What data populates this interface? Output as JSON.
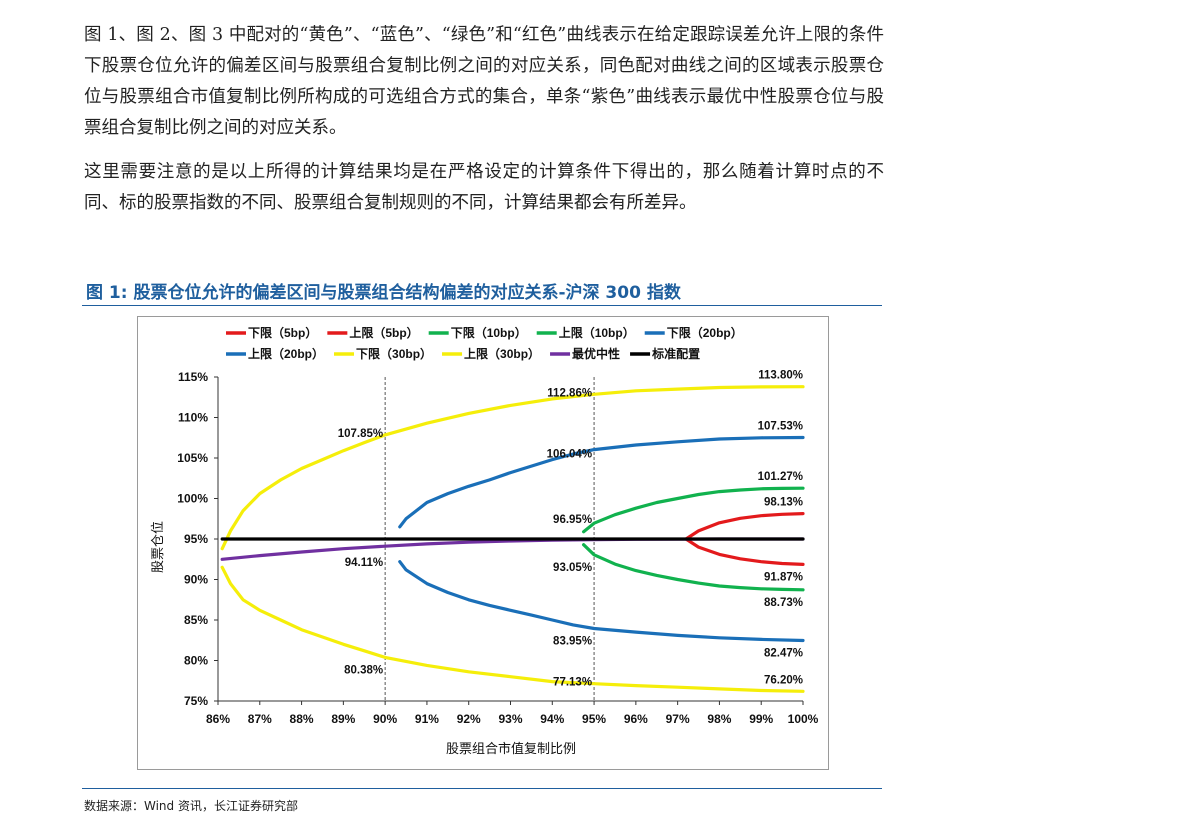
{
  "text": {
    "para1": "图 1、图 2、图 3 中配对的“黄色”、“蓝色”、“绿色”和“红色”曲线表示在给定跟踪误差允许上限的条件下股票仓位允许的偏差区间与股票组合复制比例之间的对应关系，同色配对曲线之间的区域表示股票仓位与股票组合市值复制比例所构成的可选组合方式的集合，单条“紫色”曲线表示最优中性股票仓位与股票组合复制比例之间的对应关系。",
    "para2": "这里需要注意的是以上所得的计算结果均是在严格设定的计算条件下得出的，那么随着计算时点的不同、标的股票指数的不同、股票组合复制规则的不同，计算结果都会有所差异。",
    "figure_title": "图 1:  股票仓位允许的偏差区间与股票组合结构偏差的对应关系-沪深 300 指数",
    "source": "数据来源：Wind 资讯，长江证券研究部"
  },
  "colors": {
    "red": "#e31a1c",
    "green": "#11b24e",
    "blue": "#1a6fb8",
    "yellow": "#f5ee0a",
    "purple": "#7030a0",
    "black": "#000000",
    "title_blue": "#1f5f9e"
  },
  "chart_data": {
    "type": "line",
    "title": "",
    "xlabel": "股票组合市值复制比例",
    "ylabel": "股票仓位",
    "xlim": [
      86,
      100
    ],
    "ylim": [
      75,
      115
    ],
    "x_ticks": [
      "86%",
      "87%",
      "88%",
      "89%",
      "90%",
      "91%",
      "92%",
      "93%",
      "94%",
      "95%",
      "96%",
      "97%",
      "98%",
      "99%",
      "100%"
    ],
    "y_ticks": [
      "75%",
      "80%",
      "85%",
      "90%",
      "95%",
      "100%",
      "105%",
      "110%",
      "115%"
    ],
    "vertical_reference_lines": [
      90,
      95
    ],
    "legend_position": "top",
    "series": [
      {
        "name": "下限（5bp）",
        "color": "red",
        "x": [
          97.2,
          97.5,
          98,
          98.5,
          99,
          99.5,
          100
        ],
        "y": [
          95.0,
          94.0,
          93.1,
          92.55,
          92.2,
          91.98,
          91.87
        ]
      },
      {
        "name": "上限（5bp）",
        "color": "red",
        "x": [
          97.2,
          97.5,
          98,
          98.5,
          99,
          99.5,
          100
        ],
        "y": [
          95.0,
          96.0,
          97.0,
          97.55,
          97.88,
          98.05,
          98.13
        ]
      },
      {
        "name": "下限（10bp）",
        "color": "green",
        "x": [
          94.75,
          95,
          95.5,
          96,
          96.5,
          97,
          97.5,
          98,
          98.5,
          99,
          99.5,
          100
        ],
        "y": [
          94.3,
          93.05,
          91.9,
          91.1,
          90.5,
          90.0,
          89.55,
          89.2,
          89.0,
          88.85,
          88.78,
          88.73
        ]
      },
      {
        "name": "上限（10bp）",
        "color": "green",
        "x": [
          94.75,
          95,
          95.5,
          96,
          96.5,
          97,
          97.5,
          98,
          98.5,
          99,
          99.5,
          100
        ],
        "y": [
          95.9,
          96.95,
          98.0,
          98.8,
          99.5,
          100.0,
          100.5,
          100.85,
          101.05,
          101.2,
          101.25,
          101.27
        ]
      },
      {
        "name": "下限（20bp）",
        "color": "blue",
        "x": [
          90.35,
          90.5,
          91,
          91.5,
          92,
          92.5,
          93,
          93.5,
          94,
          94.5,
          95,
          96,
          97,
          98,
          99,
          100
        ],
        "y": [
          92.2,
          91.2,
          89.5,
          88.4,
          87.5,
          86.8,
          86.2,
          85.6,
          85.0,
          84.4,
          83.95,
          83.5,
          83.1,
          82.8,
          82.6,
          82.47
        ]
      },
      {
        "name": "上限（20bp）",
        "color": "blue",
        "x": [
          90.35,
          90.5,
          91,
          91.5,
          92,
          92.5,
          93,
          93.5,
          94,
          94.5,
          95,
          96,
          97,
          98,
          99,
          100
        ],
        "y": [
          96.5,
          97.5,
          99.5,
          100.6,
          101.5,
          102.3,
          103.2,
          104.0,
          104.8,
          105.5,
          106.04,
          106.6,
          107.0,
          107.35,
          107.5,
          107.53
        ]
      },
      {
        "name": "下限（30bp）",
        "color": "yellow",
        "x": [
          86.1,
          86.3,
          86.6,
          87,
          87.5,
          88,
          88.5,
          89,
          89.5,
          90,
          91,
          92,
          93,
          94,
          95,
          96,
          97,
          98,
          99,
          100
        ],
        "y": [
          91.5,
          89.5,
          87.5,
          86.2,
          85.0,
          83.8,
          82.9,
          82.0,
          81.2,
          80.38,
          79.4,
          78.6,
          78.0,
          77.4,
          77.13,
          76.9,
          76.7,
          76.5,
          76.3,
          76.2
        ]
      },
      {
        "name": "上限（30bp）",
        "color": "yellow",
        "x": [
          86.1,
          86.3,
          86.6,
          87,
          87.5,
          88,
          88.5,
          89,
          89.5,
          90,
          91,
          92,
          93,
          94,
          95,
          96,
          97,
          98,
          99,
          100
        ],
        "y": [
          93.8,
          96.0,
          98.5,
          100.6,
          102.3,
          103.7,
          104.8,
          105.9,
          106.9,
          107.85,
          109.3,
          110.5,
          111.5,
          112.3,
          112.86,
          113.3,
          113.5,
          113.7,
          113.78,
          113.8
        ]
      },
      {
        "name": "最优中性",
        "color": "purple",
        "x": [
          86.1,
          87,
          88,
          89,
          90,
          91,
          92,
          93,
          94,
          95,
          96,
          97,
          98,
          99,
          100
        ],
        "y": [
          92.5,
          92.95,
          93.4,
          93.8,
          94.11,
          94.4,
          94.6,
          94.75,
          94.85,
          94.92,
          94.96,
          94.98,
          95.0,
          95.0,
          95.0
        ]
      },
      {
        "name": "标准配置",
        "color": "black",
        "x": [
          86.1,
          100
        ],
        "y": [
          95,
          95
        ]
      }
    ],
    "annotations": [
      {
        "text": "113.80%",
        "x": 100,
        "y": 113.8
      },
      {
        "text": "112.86%",
        "x": 95,
        "y": 112.86
      },
      {
        "text": "107.85%",
        "x": 90,
        "y": 107.85
      },
      {
        "text": "107.53%",
        "x": 100,
        "y": 107.53
      },
      {
        "text": "106.04%",
        "x": 95,
        "y": 106.04
      },
      {
        "text": "101.27%",
        "x": 100,
        "y": 101.27
      },
      {
        "text": "98.13%",
        "x": 100,
        "y": 98.13
      },
      {
        "text": "96.95%",
        "x": 95,
        "y": 96.95
      },
      {
        "text": "94.11%",
        "x": 90,
        "y": 94.11
      },
      {
        "text": "93.05%",
        "x": 95,
        "y": 93.05
      },
      {
        "text": "91.87%",
        "x": 100,
        "y": 91.87
      },
      {
        "text": "88.73%",
        "x": 100,
        "y": 88.73
      },
      {
        "text": "83.95%",
        "x": 95,
        "y": 83.95
      },
      {
        "text": "82.47%",
        "x": 100,
        "y": 82.47
      },
      {
        "text": "80.38%",
        "x": 90,
        "y": 80.38
      },
      {
        "text": "77.13%",
        "x": 95,
        "y": 77.13
      },
      {
        "text": "76.20%",
        "x": 100,
        "y": 76.2
      }
    ]
  }
}
